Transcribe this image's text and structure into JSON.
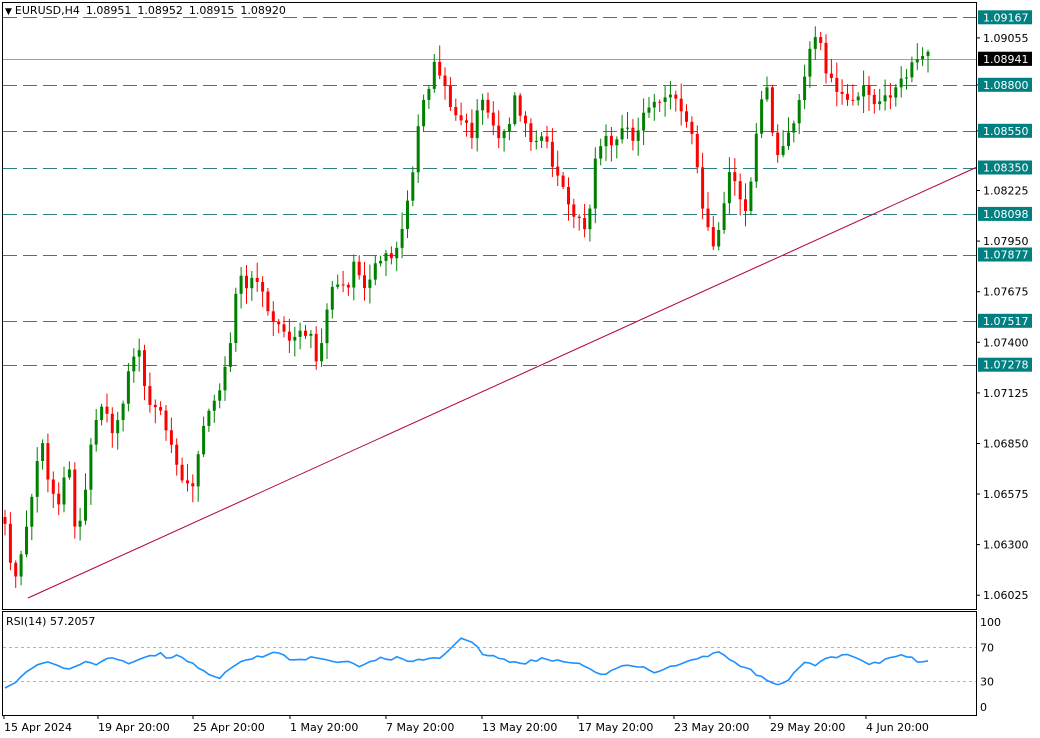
{
  "header": {
    "symbol": "EURUSD,H4",
    "open": "1.08951",
    "high": "1.08952",
    "low": "1.08915",
    "close": "1.08920"
  },
  "rsi": {
    "label": "RSI(14) 57.2057",
    "period": 14,
    "value": 57.2057,
    "levels": [
      "100",
      "70",
      "30",
      "0"
    ],
    "color": "#1e90ff"
  },
  "colors": {
    "bull": "#008000",
    "bear": "#ff0000",
    "level_line": "#2f7f86",
    "trend_line": "#b4003c",
    "label_bg": "#008080"
  },
  "chart_data": {
    "type": "candlestick",
    "symbol": "EURUSD",
    "timeframe": "H4",
    "ylim": [
      1.0595,
      1.0925
    ],
    "y_ticks": [
      "1.09055",
      "1.08800",
      "1.08550",
      "1.08225",
      "1.07950",
      "1.07675",
      "1.07400",
      "1.07125",
      "1.06850",
      "1.06575",
      "1.06300",
      "1.06025"
    ],
    "x_ticks": [
      "15 Apr 2024",
      "19 Apr 20:00",
      "25 Apr 20:00",
      "1 May 20:00",
      "7 May 20:00",
      "13 May 20:00",
      "17 May 20:00",
      "23 May 20:00",
      "29 May 20:00",
      "4 Jun 20:00"
    ],
    "levels": [
      {
        "label": "1.09167",
        "value": 1.09167
      },
      {
        "label": "1.08941",
        "value": 1.08941
      },
      {
        "label": "1.08800",
        "value": 1.088
      },
      {
        "label": "1.08550",
        "value": 1.0855
      },
      {
        "label": "1.08350",
        "value": 1.0835
      },
      {
        "label": "1.08098",
        "value": 1.08098
      },
      {
        "label": "1.07877",
        "value": 1.07877
      },
      {
        "label": "1.07517",
        "value": 1.07517
      },
      {
        "label": "1.07278",
        "value": 1.07278
      }
    ],
    "current_price": 1.08941,
    "trendline": {
      "from_value": 1.0601,
      "to_value": 1.0835
    },
    "anchors": [
      1.0645,
      1.061,
      1.063,
      1.066,
      1.0685,
      1.0655,
      1.065,
      1.0675,
      1.0635,
      1.0665,
      1.07,
      1.0712,
      1.069,
      1.07,
      1.073,
      1.073,
      1.07,
      1.0712,
      1.0695,
      1.068,
      1.0667,
      1.066,
      1.069,
      1.07,
      1.071,
      1.073,
      1.0785,
      1.077,
      1.078,
      1.0765,
      1.075,
      1.074,
      1.074,
      1.0745,
      1.074,
      1.073,
      1.0765,
      1.0775,
      1.077,
      1.078,
      1.0765,
      1.0775,
      1.0785,
      1.0785,
      1.08,
      1.082,
      1.0855,
      1.088,
      1.089,
      1.0875,
      1.086,
      1.086,
      1.085,
      1.088,
      1.0865,
      1.0855,
      1.0855,
      1.087,
      1.0855,
      1.0845,
      1.085,
      1.084,
      1.083,
      1.0818,
      1.081,
      1.0803,
      1.084,
      1.085,
      1.0845,
      1.0855,
      1.085,
      1.0865,
      1.087,
      1.0875,
      1.0875,
      1.0865,
      1.086,
      1.0845,
      1.0805,
      1.0795,
      1.081,
      1.084,
      1.082,
      1.0815,
      1.086,
      1.088,
      1.0835,
      1.0845,
      1.086,
      1.088,
      1.091,
      1.0905,
      1.088,
      1.0875,
      1.087,
      1.0865,
      1.088,
      1.087,
      1.0875,
      1.088,
      1.0885,
      1.089,
      1.0894,
      1.0892
    ],
    "rsi_anchors": [
      22,
      28,
      38,
      45,
      55,
      50,
      45,
      48,
      52,
      48,
      55,
      58,
      53,
      56,
      60,
      64,
      55,
      60,
      52,
      48,
      40,
      35,
      45,
      52,
      55,
      58,
      60,
      65,
      58,
      56,
      60,
      55,
      52,
      50,
      52,
      48,
      55,
      60,
      58,
      55,
      50,
      55,
      54,
      60,
      72,
      84,
      78,
      62,
      58,
      55,
      50,
      52,
      56,
      58,
      55,
      52,
      50,
      48,
      42,
      40,
      45,
      50,
      48,
      45,
      40,
      42,
      50,
      55,
      58,
      60,
      65,
      58,
      50,
      45,
      40,
      35,
      28,
      30,
      42,
      52,
      48,
      55,
      60,
      65,
      58,
      52,
      50,
      55,
      60,
      58,
      55,
      57
    ]
  },
  "axis_labels": {
    "price_ticks": [
      "1.09055",
      "1.08800",
      "1.08550",
      "1.08225",
      "1.07950",
      "1.07675",
      "1.07400",
      "1.07125",
      "1.06850",
      "1.06575",
      "1.06300",
      "1.06025"
    ],
    "time_ticks": [
      "15 Apr 2024",
      "19 Apr 20:00",
      "25 Apr 20:00",
      "1 May 20:00",
      "7 May 20:00",
      "13 May 20:00",
      "17 May 20:00",
      "23 May 20:00",
      "29 May 20:00",
      "4 Jun 20:00"
    ]
  }
}
